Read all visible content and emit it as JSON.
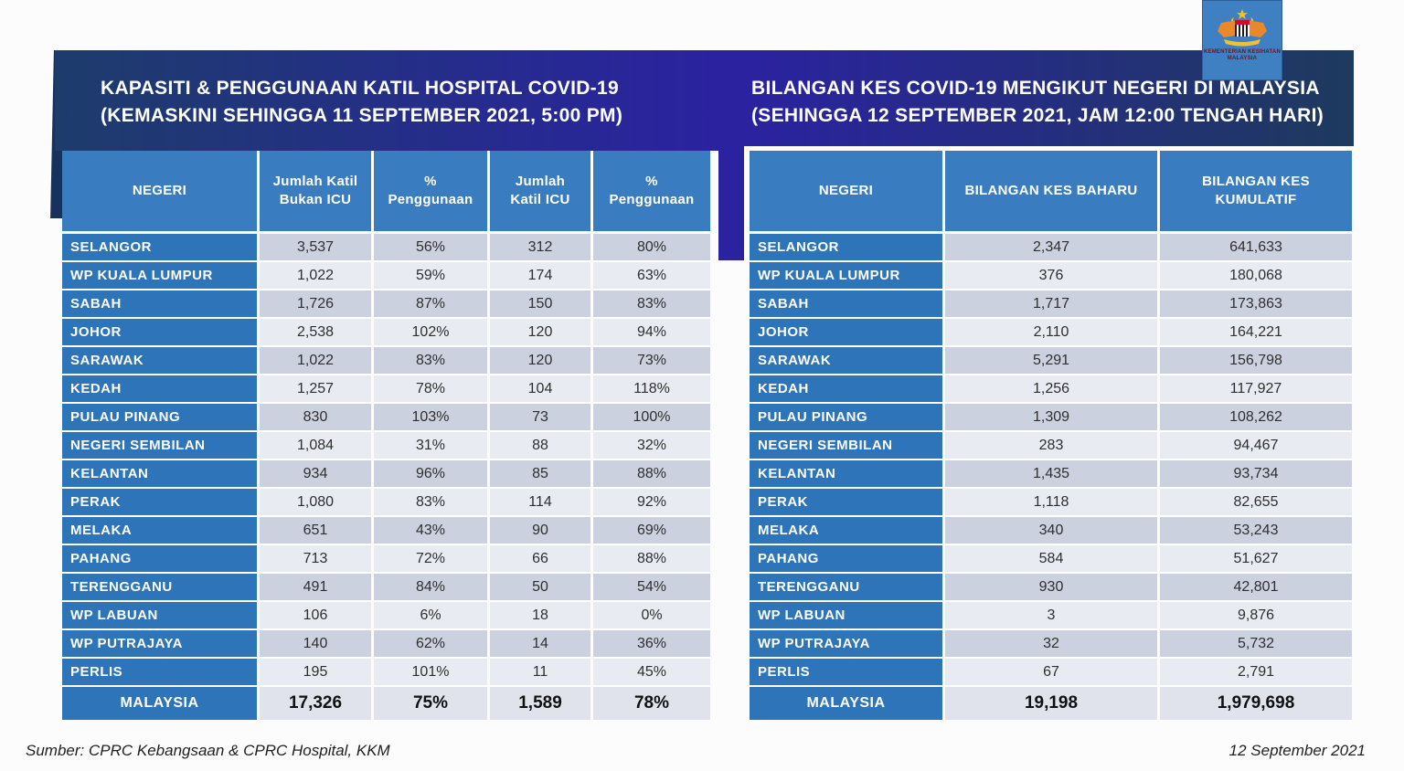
{
  "logo": {
    "line1": "KEMENTERIAN KESIHATAN",
    "line2": "MALAYSIA"
  },
  "left_table": {
    "title_line1": "KAPASITI & PENGGUNAAN KATIL HOSPITAL COVID-19",
    "title_line2": "(KEMASKINI SEHINGGA 11 SEPTEMBER 2021, 5:00 PM)",
    "columns": [
      "NEGERI",
      "Jumlah Katil\nBukan ICU",
      "%\nPenggunaan",
      "Jumlah\nKatil ICU",
      "%\nPenggunaan"
    ],
    "rows": [
      [
        "SELANGOR",
        "3,537",
        "56%",
        "312",
        "80%"
      ],
      [
        "WP KUALA LUMPUR",
        "1,022",
        "59%",
        "174",
        "63%"
      ],
      [
        "SABAH",
        "1,726",
        "87%",
        "150",
        "83%"
      ],
      [
        "JOHOR",
        "2,538",
        "102%",
        "120",
        "94%"
      ],
      [
        "SARAWAK",
        "1,022",
        "83%",
        "120",
        "73%"
      ],
      [
        "KEDAH",
        "1,257",
        "78%",
        "104",
        "118%"
      ],
      [
        "PULAU PINANG",
        "830",
        "103%",
        "73",
        "100%"
      ],
      [
        "NEGERI SEMBILAN",
        "1,084",
        "31%",
        "88",
        "32%"
      ],
      [
        "KELANTAN",
        "934",
        "96%",
        "85",
        "88%"
      ],
      [
        "PERAK",
        "1,080",
        "83%",
        "114",
        "92%"
      ],
      [
        "MELAKA",
        "651",
        "43%",
        "90",
        "69%"
      ],
      [
        "PAHANG",
        "713",
        "72%",
        "66",
        "88%"
      ],
      [
        "TERENGGANU",
        "491",
        "84%",
        "50",
        "54%"
      ],
      [
        "WP LABUAN",
        "106",
        "6%",
        "18",
        "0%"
      ],
      [
        "WP PUTRAJAYA",
        "140",
        "62%",
        "14",
        "36%"
      ],
      [
        "PERLIS",
        "195",
        "101%",
        "11",
        "45%"
      ]
    ],
    "total": [
      "MALAYSIA",
      "17,326",
      "75%",
      "1,589",
      "78%"
    ]
  },
  "right_table": {
    "title_line1": "BILANGAN KES COVID-19 MENGIKUT NEGERI DI MALAYSIA",
    "title_line2": "(SEHINGGA 12 SEPTEMBER 2021, JAM 12:00 TENGAH HARI)",
    "columns": [
      "NEGERI",
      "BILANGAN KES BAHARU",
      "BILANGAN KES\nKUMULATIF"
    ],
    "rows": [
      [
        "SELANGOR",
        "2,347",
        "641,633"
      ],
      [
        "WP KUALA LUMPUR",
        "376",
        "180,068"
      ],
      [
        "SABAH",
        "1,717",
        "173,863"
      ],
      [
        "JOHOR",
        "2,110",
        "164,221"
      ],
      [
        "SARAWAK",
        "5,291",
        "156,798"
      ],
      [
        "KEDAH",
        "1,256",
        "117,927"
      ],
      [
        "PULAU PINANG",
        "1,309",
        "108,262"
      ],
      [
        "NEGERI SEMBILAN",
        "283",
        "94,467"
      ],
      [
        "KELANTAN",
        "1,435",
        "93,734"
      ],
      [
        "PERAK",
        "1,118",
        "82,655"
      ],
      [
        "MELAKA",
        "340",
        "53,243"
      ],
      [
        "PAHANG",
        "584",
        "51,627"
      ],
      [
        "TERENGGANU",
        "930",
        "42,801"
      ],
      [
        "WP LABUAN",
        "3",
        "9,876"
      ],
      [
        "WP PUTRAJAYA",
        "32",
        "5,732"
      ],
      [
        "PERLIS",
        "67",
        "2,791"
      ]
    ],
    "total": [
      "MALAYSIA",
      "19,198",
      "1,979,698"
    ]
  },
  "footer": {
    "source": "Sumber: CPRC Kebangsaan & CPRC Hospital, KKM",
    "date": "12 September 2021"
  },
  "colors": {
    "banner_navy": "#1d3c6c",
    "banner_indigo": "#2b22a0",
    "banner_navy_right": "#1e3a5e",
    "banner_edge": "#16325c",
    "header_blue": "#3a7cc0",
    "state_blue": "#2e74b8",
    "row_dark": "#cbd1df",
    "row_light": "#e9ebf2",
    "total_bg": "#e0e3ec",
    "logo_blue": "#3f80c2",
    "value_text": "#2f2f2f"
  }
}
